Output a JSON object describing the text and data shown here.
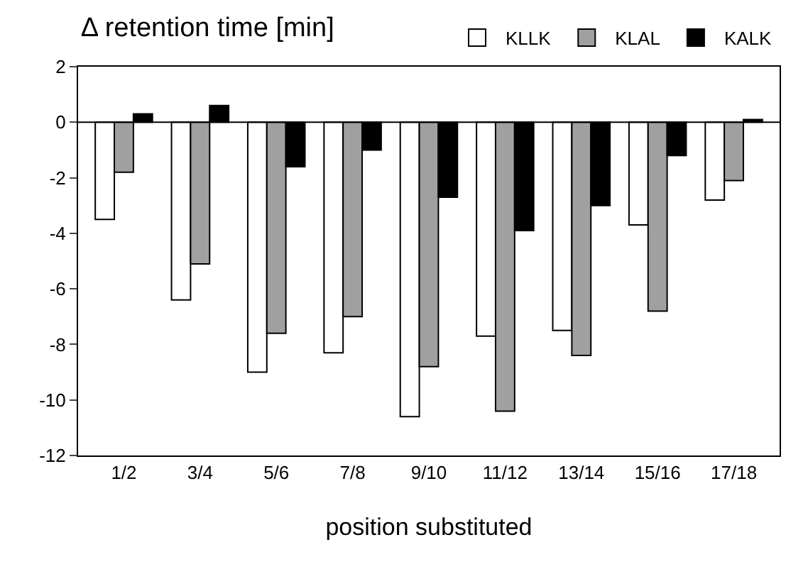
{
  "chart_data": {
    "type": "bar",
    "title": "Δ retention time [min]",
    "xlabel": "position substituted",
    "categories": [
      "1/2",
      "3/4",
      "5/6",
      "7/8",
      "9/10",
      "11/12",
      "13/14",
      "15/16",
      "17/18"
    ],
    "series": [
      {
        "name": "KLLK",
        "color": "#ffffff",
        "values": [
          -3.5,
          -6.4,
          -9.0,
          -8.3,
          -10.6,
          -7.7,
          -7.5,
          -3.7,
          -2.8
        ]
      },
      {
        "name": "KLAL",
        "color": "#a0a0a0",
        "values": [
          -1.8,
          -5.1,
          -7.6,
          -7.0,
          -8.8,
          -10.4,
          -8.4,
          -6.8,
          -2.1
        ]
      },
      {
        "name": "KALK",
        "color": "#000000",
        "values": [
          0.3,
          0.6,
          -1.6,
          -1.0,
          -2.7,
          -3.9,
          -3.0,
          -1.2,
          0.1
        ]
      }
    ],
    "ylim": [
      -12,
      2
    ],
    "yticks": [
      -12,
      -10,
      -8,
      -6,
      -4,
      -2,
      0,
      2
    ],
    "ref_lines": [
      {
        "axis": "y",
        "value": 0,
        "color": "#000000"
      }
    ],
    "legend": "top right"
  }
}
